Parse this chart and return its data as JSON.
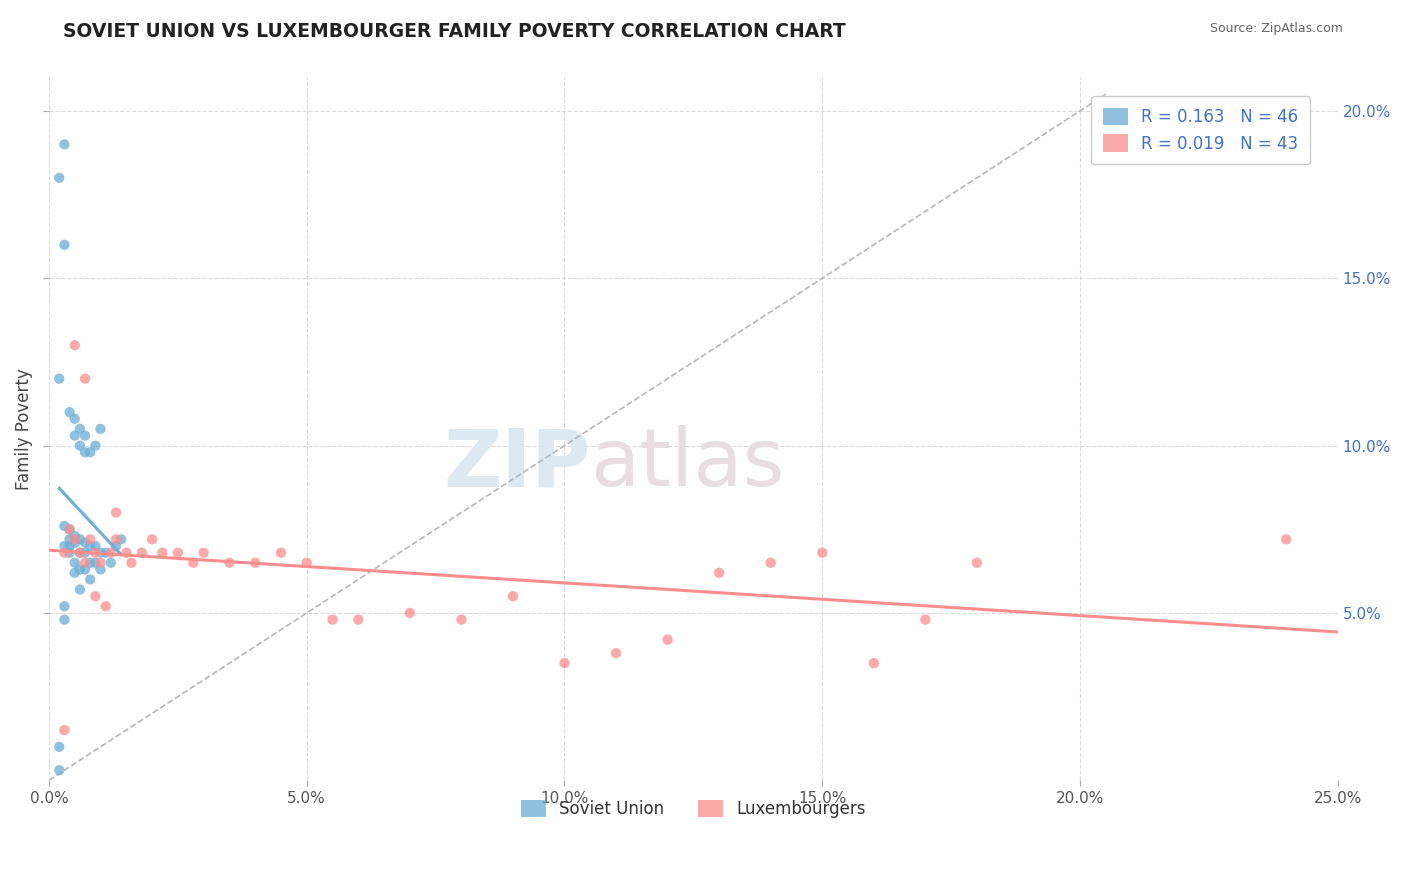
{
  "title": "SOVIET UNION VS LUXEMBOURGER FAMILY POVERTY CORRELATION CHART",
  "source": "Source: ZipAtlas.com",
  "ylabel": "Family Poverty",
  "xlim": [
    0.0,
    0.25
  ],
  "ylim": [
    0.0,
    0.21
  ],
  "xtick_labels": [
    "0.0%",
    "5.0%",
    "10.0%",
    "15.0%",
    "20.0%",
    "25.0%"
  ],
  "xtick_vals": [
    0.0,
    0.05,
    0.1,
    0.15,
    0.2,
    0.25
  ],
  "ytick_labels": [
    "5.0%",
    "10.0%",
    "15.0%",
    "20.0%"
  ],
  "ytick_vals": [
    0.05,
    0.1,
    0.15,
    0.2
  ],
  "soviet_color": "#6baed6",
  "lux_color": "#fc8d8d",
  "soviet_R": 0.163,
  "soviet_N": 46,
  "lux_R": 0.019,
  "lux_N": 43,
  "watermark_zip": "ZIP",
  "watermark_atlas": "atlas",
  "tick_blue_color": "#4472C4",
  "soviet_points_x": [
    0.002,
    0.003,
    0.003,
    0.004,
    0.004,
    0.004,
    0.005,
    0.005,
    0.005,
    0.006,
    0.006,
    0.006,
    0.007,
    0.007,
    0.007,
    0.008,
    0.008,
    0.008,
    0.009,
    0.009,
    0.01,
    0.01,
    0.011,
    0.012,
    0.013,
    0.014,
    0.002,
    0.003,
    0.004,
    0.005,
    0.005,
    0.006,
    0.006,
    0.007,
    0.007,
    0.008,
    0.009,
    0.01,
    0.002,
    0.003,
    0.004,
    0.005,
    0.006,
    0.003,
    0.003,
    0.002
  ],
  "soviet_points_y": [
    0.003,
    0.076,
    0.07,
    0.075,
    0.072,
    0.068,
    0.073,
    0.071,
    0.065,
    0.072,
    0.068,
    0.063,
    0.071,
    0.068,
    0.063,
    0.07,
    0.065,
    0.06,
    0.07,
    0.065,
    0.068,
    0.063,
    0.068,
    0.065,
    0.07,
    0.072,
    0.12,
    0.16,
    0.11,
    0.108,
    0.103,
    0.105,
    0.1,
    0.103,
    0.098,
    0.098,
    0.1,
    0.105,
    0.18,
    0.19,
    0.07,
    0.062,
    0.057,
    0.052,
    0.048,
    0.01
  ],
  "lux_points_x": [
    0.003,
    0.004,
    0.005,
    0.006,
    0.007,
    0.008,
    0.009,
    0.01,
    0.012,
    0.013,
    0.015,
    0.016,
    0.018,
    0.02,
    0.022,
    0.025,
    0.028,
    0.03,
    0.035,
    0.04,
    0.045,
    0.05,
    0.055,
    0.06,
    0.07,
    0.08,
    0.09,
    0.1,
    0.11,
    0.12,
    0.13,
    0.14,
    0.15,
    0.16,
    0.17,
    0.18,
    0.005,
    0.007,
    0.009,
    0.011,
    0.013,
    0.24,
    0.003
  ],
  "lux_points_y": [
    0.068,
    0.075,
    0.072,
    0.068,
    0.065,
    0.072,
    0.068,
    0.065,
    0.068,
    0.072,
    0.068,
    0.065,
    0.068,
    0.072,
    0.068,
    0.068,
    0.065,
    0.068,
    0.065,
    0.065,
    0.068,
    0.065,
    0.048,
    0.048,
    0.05,
    0.048,
    0.055,
    0.035,
    0.038,
    0.042,
    0.062,
    0.065,
    0.068,
    0.035,
    0.048,
    0.065,
    0.13,
    0.12,
    0.055,
    0.052,
    0.08,
    0.072,
    0.015
  ]
}
